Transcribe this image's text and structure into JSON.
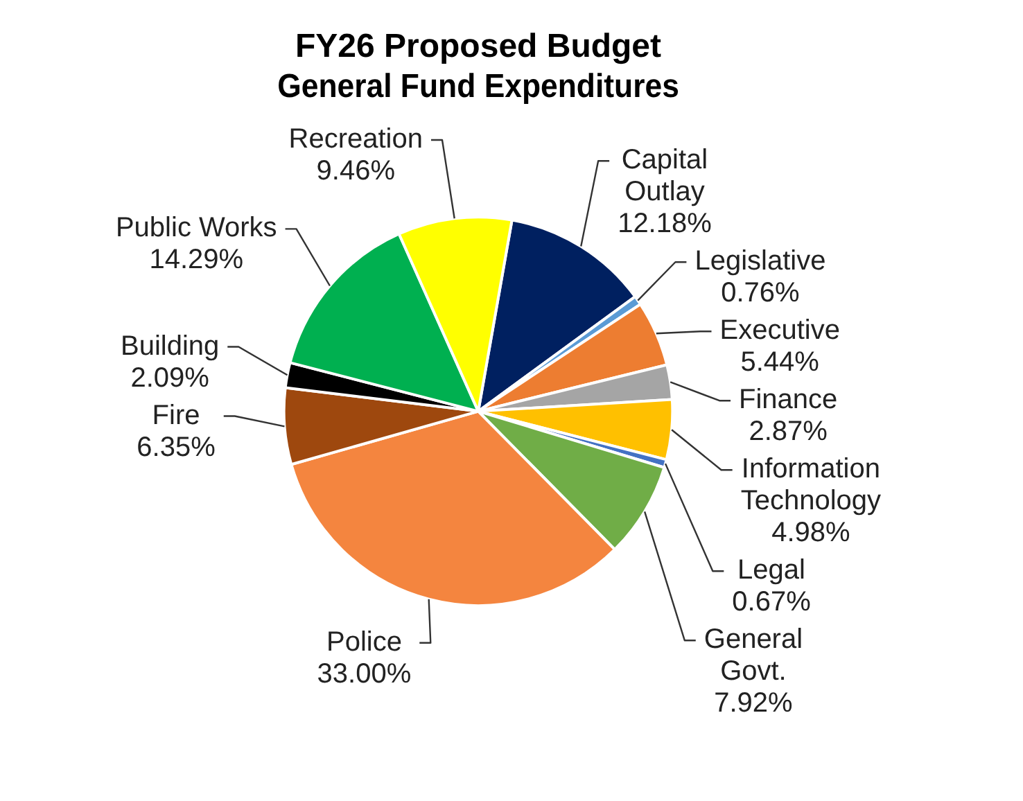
{
  "chart_data": {
    "type": "pie",
    "title": "FY26 Proposed Budget\nGeneral Fund Expenditures",
    "categories": [
      "Capital Outlay",
      "Legislative",
      "Executive",
      "Finance",
      "Information Technology",
      "Legal",
      "General Govt.",
      "Police",
      "Fire",
      "Building",
      "Public Works",
      "Recreation"
    ],
    "values": [
      12.18,
      0.76,
      5.44,
      2.87,
      4.98,
      0.67,
      7.92,
      33.0,
      6.35,
      2.09,
      14.29,
      9.46
    ],
    "value_labels": [
      "12.18%",
      "0.76%",
      "5.44%",
      "2.87%",
      "4.98%",
      "0.67%",
      "7.92%",
      "33.00%",
      "6.35%",
      "2.09%",
      "14.29%",
      "9.46%"
    ],
    "colors": [
      "#002060",
      "#5b9bd5",
      "#ed7d31",
      "#a5a5a5",
      "#ffc000",
      "#4472c4",
      "#70ad47",
      "#f4853f",
      "#9e480e",
      "#000000",
      "#00b050",
      "#ffff00"
    ],
    "legend": false
  }
}
